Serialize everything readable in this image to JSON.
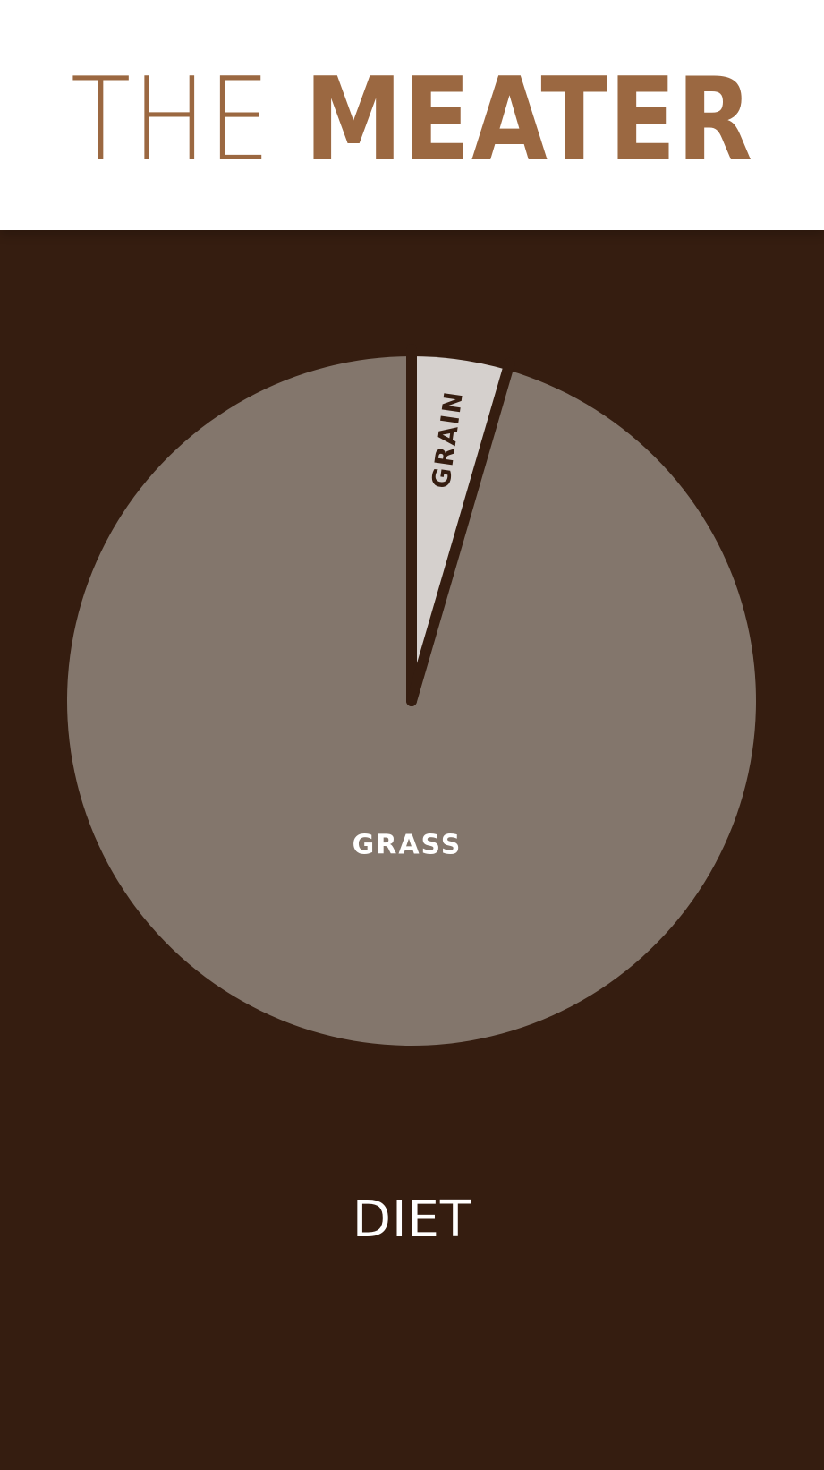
{
  "header": {
    "title_light": "THE ",
    "title_bold": "MEATER"
  },
  "colors": {
    "brand": "#9b6841",
    "background": "#351d10",
    "header_bg": "#ffffff",
    "grass": "#83766c",
    "grain": "#d5d0cd",
    "grass_label": "#ffffff",
    "grain_label": "#351d10"
  },
  "chart_data": {
    "type": "pie",
    "categories": [
      "GRAIN",
      "GRASS"
    ],
    "values": [
      4.5,
      95.5
    ],
    "value_unit": "%",
    "start_angle": "12 o'clock, clockwise",
    "title": "",
    "caption": "DIET"
  }
}
